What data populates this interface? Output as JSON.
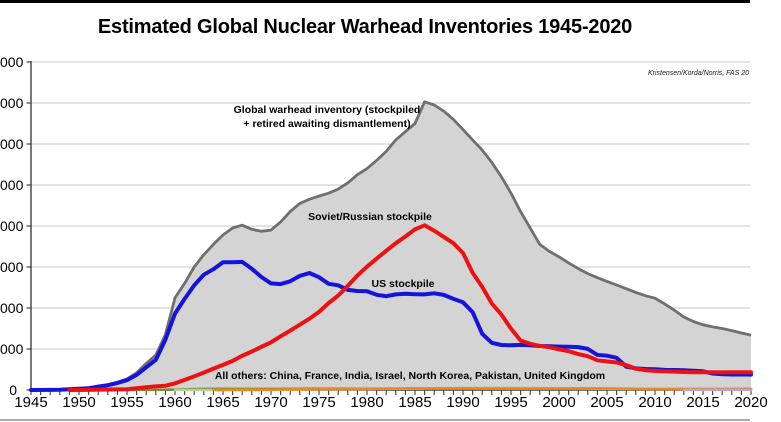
{
  "chart_data": {
    "type": "area",
    "title": "Estimated Global Nuclear Warhead Inventories 1945-2020",
    "attribution": "Kristensen/Korda/Norris, FAS 20",
    "annotations": {
      "global_line1": "Global warhead inventory (stockpiled",
      "global_line2": "+ retired awaiting dismantlement)",
      "soviet": "Soviet/Russian stockpile",
      "us": "US stockpile",
      "others": "All others: China, France, India, Israel, North Korea, Pakistan, United Kingdom"
    },
    "axes": {
      "x": {
        "min": 1945,
        "max": 2020,
        "label_step": 5,
        "minor_tick_step": 1,
        "tick_labels": [
          "1945",
          "1950",
          "1955",
          "1960",
          "1965",
          "1970",
          "1975",
          "1980",
          "1985",
          "1990",
          "1995",
          "2000",
          "2005",
          "2010",
          "2015",
          "2020"
        ]
      },
      "y": {
        "min": 0,
        "max": 80000,
        "tick_step": 10000,
        "grid": true,
        "labels_clipped_at_left": true,
        "visible_tick_labels": [
          "000",
          "000",
          "000",
          "000",
          "000",
          "000",
          "000",
          "000",
          "0"
        ]
      },
      "legend_position": "inline-annotations"
    },
    "series": [
      {
        "id": "global-inventory",
        "name": "Global warhead inventory (stockpiled + retired awaiting dismantlement)",
        "style": "area",
        "color": "#6f6f6f",
        "fill": "#d4d4d4",
        "width": 2.8,
        "points": [
          [
            1945,
            2
          ],
          [
            1947,
            15
          ],
          [
            1949,
            200
          ],
          [
            1950,
            300
          ],
          [
            1951,
            450
          ],
          [
            1952,
            900
          ],
          [
            1953,
            1300
          ],
          [
            1954,
            1900
          ],
          [
            1955,
            2700
          ],
          [
            1956,
            4200
          ],
          [
            1957,
            6500
          ],
          [
            1958,
            8500
          ],
          [
            1959,
            13500
          ],
          [
            1960,
            22500
          ],
          [
            1961,
            26000
          ],
          [
            1962,
            30000
          ],
          [
            1963,
            33000
          ],
          [
            1964,
            35500
          ],
          [
            1965,
            37800
          ],
          [
            1966,
            39500
          ],
          [
            1967,
            40200
          ],
          [
            1968,
            39200
          ],
          [
            1969,
            38700
          ],
          [
            1970,
            39000
          ],
          [
            1971,
            41000
          ],
          [
            1972,
            43500
          ],
          [
            1973,
            45500
          ],
          [
            1974,
            46500
          ],
          [
            1975,
            47300
          ],
          [
            1976,
            48000
          ],
          [
            1977,
            49000
          ],
          [
            1978,
            50500
          ],
          [
            1979,
            52500
          ],
          [
            1980,
            54000
          ],
          [
            1981,
            56000
          ],
          [
            1982,
            58200
          ],
          [
            1983,
            61000
          ],
          [
            1984,
            63000
          ],
          [
            1985,
            65000
          ],
          [
            1986,
            70300
          ],
          [
            1987,
            69500
          ],
          [
            1988,
            68000
          ],
          [
            1989,
            66000
          ],
          [
            1990,
            63500
          ],
          [
            1991,
            61000
          ],
          [
            1992,
            58500
          ],
          [
            1993,
            55500
          ],
          [
            1994,
            52000
          ],
          [
            1995,
            48000
          ],
          [
            1996,
            43500
          ],
          [
            1997,
            39500
          ],
          [
            1998,
            35500
          ],
          [
            1999,
            33800
          ],
          [
            2000,
            32500
          ],
          [
            2001,
            31000
          ],
          [
            2002,
            29600
          ],
          [
            2003,
            28400
          ],
          [
            2004,
            27400
          ],
          [
            2005,
            26500
          ],
          [
            2006,
            25600
          ],
          [
            2007,
            24700
          ],
          [
            2008,
            23800
          ],
          [
            2009,
            23000
          ],
          [
            2010,
            22400
          ],
          [
            2011,
            21000
          ],
          [
            2012,
            19500
          ],
          [
            2013,
            17800
          ],
          [
            2014,
            16700
          ],
          [
            2015,
            15900
          ],
          [
            2016,
            15400
          ],
          [
            2017,
            15000
          ],
          [
            2018,
            14500
          ],
          [
            2019,
            13900
          ],
          [
            2020,
            13400
          ]
        ]
      },
      {
        "id": "united-kingdom",
        "name": "United Kingdom (all others)",
        "style": "line",
        "color": "#7d8b33",
        "width": 2.5,
        "points": [
          [
            1953,
            1
          ],
          [
            1955,
            14
          ],
          [
            1958,
            30
          ],
          [
            1960,
            105
          ],
          [
            1963,
            270
          ],
          [
            1965,
            310
          ],
          [
            1970,
            280
          ],
          [
            1975,
            350
          ],
          [
            1980,
            350
          ],
          [
            1985,
            300
          ],
          [
            1990,
            300
          ],
          [
            1995,
            300
          ],
          [
            2000,
            280
          ],
          [
            2005,
            280
          ],
          [
            2010,
            225
          ],
          [
            2015,
            215
          ],
          [
            2020,
            195
          ]
        ]
      },
      {
        "id": "france",
        "name": "France (all others)",
        "style": "line",
        "color": "#b7cf9c",
        "width": 2.5,
        "points": [
          [
            1960,
            0
          ],
          [
            1964,
            4
          ],
          [
            1966,
            20
          ],
          [
            1968,
            36
          ],
          [
            1970,
            36
          ],
          [
            1975,
            188
          ],
          [
            1980,
            250
          ],
          [
            1985,
            360
          ],
          [
            1990,
            505
          ],
          [
            1995,
            500
          ],
          [
            2000,
            470
          ],
          [
            2005,
            350
          ],
          [
            2010,
            300
          ],
          [
            2015,
            300
          ],
          [
            2020,
            290
          ]
        ]
      },
      {
        "id": "china",
        "name": "China (all others)",
        "style": "line",
        "color": "#ee8822",
        "width": 2.5,
        "points": [
          [
            1964,
            1
          ],
          [
            1966,
            20
          ],
          [
            1968,
            35
          ],
          [
            1970,
            75
          ],
          [
            1972,
            130
          ],
          [
            1975,
            185
          ],
          [
            1980,
            280
          ],
          [
            1985,
            425
          ],
          [
            1990,
            430
          ],
          [
            1995,
            400
          ],
          [
            2000,
            400
          ],
          [
            2005,
            400
          ],
          [
            2010,
            240
          ],
          [
            2015,
            260
          ],
          [
            2020,
            320
          ]
        ]
      },
      {
        "id": "north-korea",
        "name": "North Korea (all others)",
        "style": "line",
        "color": "#b4a6d8",
        "width": 2.5,
        "points": [
          [
            2013,
            10
          ],
          [
            2015,
            15
          ],
          [
            2017,
            25
          ],
          [
            2020,
            35
          ]
        ]
      },
      {
        "id": "us-stockpile",
        "name": "US stockpile",
        "style": "line",
        "color": "#1414dd",
        "width": 4,
        "points": [
          [
            1945,
            2
          ],
          [
            1947,
            13
          ],
          [
            1948,
            50
          ],
          [
            1949,
            170
          ],
          [
            1950,
            299
          ],
          [
            1951,
            438
          ],
          [
            1952,
            841
          ],
          [
            1953,
            1169
          ],
          [
            1954,
            1703
          ],
          [
            1955,
            2422
          ],
          [
            1956,
            3692
          ],
          [
            1957,
            5543
          ],
          [
            1958,
            7345
          ],
          [
            1959,
            12298
          ],
          [
            1960,
            18638
          ],
          [
            1961,
            22229
          ],
          [
            1962,
            25540
          ],
          [
            1963,
            28133
          ],
          [
            1964,
            29463
          ],
          [
            1965,
            31139
          ],
          [
            1966,
            31175
          ],
          [
            1967,
            31255
          ],
          [
            1968,
            29561
          ],
          [
            1969,
            27552
          ],
          [
            1970,
            26008
          ],
          [
            1971,
            25830
          ],
          [
            1972,
            26516
          ],
          [
            1973,
            27835
          ],
          [
            1974,
            28537
          ],
          [
            1975,
            27519
          ],
          [
            1976,
            25914
          ],
          [
            1977,
            25542
          ],
          [
            1978,
            24418
          ],
          [
            1979,
            24138
          ],
          [
            1980,
            24104
          ],
          [
            1981,
            23208
          ],
          [
            1982,
            22886
          ],
          [
            1983,
            23305
          ],
          [
            1984,
            23459
          ],
          [
            1985,
            23368
          ],
          [
            1986,
            23317
          ],
          [
            1987,
            23575
          ],
          [
            1988,
            23205
          ],
          [
            1989,
            22217
          ],
          [
            1990,
            21392
          ],
          [
            1991,
            19008
          ],
          [
            1992,
            13708
          ],
          [
            1993,
            11511
          ],
          [
            1994,
            10979
          ],
          [
            1995,
            10904
          ],
          [
            1996,
            11011
          ],
          [
            1997,
            10903
          ],
          [
            1998,
            10732
          ],
          [
            1999,
            10685
          ],
          [
            2000,
            10577
          ],
          [
            2001,
            10526
          ],
          [
            2002,
            10457
          ],
          [
            2003,
            10027
          ],
          [
            2004,
            8570
          ],
          [
            2005,
            8360
          ],
          [
            2006,
            7853
          ],
          [
            2007,
            5709
          ],
          [
            2008,
            5273
          ],
          [
            2009,
            5113
          ],
          [
            2010,
            5066
          ],
          [
            2011,
            4897
          ],
          [
            2012,
            4881
          ],
          [
            2013,
            4804
          ],
          [
            2014,
            4717
          ],
          [
            2015,
            4571
          ],
          [
            2016,
            4018
          ],
          [
            2017,
            3822
          ],
          [
            2018,
            3785
          ],
          [
            2019,
            3805
          ],
          [
            2020,
            3750
          ]
        ]
      },
      {
        "id": "soviet-russian-stockpile",
        "name": "Soviet/Russian stockpile",
        "style": "line",
        "color": "#ee1111",
        "width": 4,
        "points": [
          [
            1949,
            1
          ],
          [
            1951,
            25
          ],
          [
            1953,
            120
          ],
          [
            1955,
            200
          ],
          [
            1956,
            426
          ],
          [
            1957,
            660
          ],
          [
            1958,
            869
          ],
          [
            1959,
            1060
          ],
          [
            1960,
            1605
          ],
          [
            1961,
            2471
          ],
          [
            1962,
            3322
          ],
          [
            1963,
            4238
          ],
          [
            1964,
            5221
          ],
          [
            1965,
            6129
          ],
          [
            1966,
            7089
          ],
          [
            1967,
            8339
          ],
          [
            1968,
            9399
          ],
          [
            1969,
            10538
          ],
          [
            1970,
            11643
          ],
          [
            1971,
            13092
          ],
          [
            1972,
            14478
          ],
          [
            1973,
            15915
          ],
          [
            1974,
            17385
          ],
          [
            1975,
            19055
          ],
          [
            1976,
            21205
          ],
          [
            1977,
            23044
          ],
          [
            1978,
            25393
          ],
          [
            1979,
            27935
          ],
          [
            1980,
            30062
          ],
          [
            1981,
            32049
          ],
          [
            1982,
            33952
          ],
          [
            1983,
            35804
          ],
          [
            1984,
            37431
          ],
          [
            1985,
            39197
          ],
          [
            1986,
            40159
          ],
          [
            1987,
            38859
          ],
          [
            1988,
            37333
          ],
          [
            1989,
            35805
          ],
          [
            1990,
            33417
          ],
          [
            1991,
            28595
          ],
          [
            1992,
            25155
          ],
          [
            1993,
            21101
          ],
          [
            1994,
            18399
          ],
          [
            1995,
            14978
          ],
          [
            1996,
            12085
          ],
          [
            1997,
            11264
          ],
          [
            1998,
            10764
          ],
          [
            1999,
            10451
          ],
          [
            2000,
            9896
          ],
          [
            2001,
            9477
          ],
          [
            2002,
            8757
          ],
          [
            2003,
            8243
          ],
          [
            2004,
            7252
          ],
          [
            2005,
            6966
          ],
          [
            2006,
            6718
          ],
          [
            2007,
            6079
          ],
          [
            2008,
            5189
          ],
          [
            2009,
            4836
          ],
          [
            2010,
            4653
          ],
          [
            2011,
            4541
          ],
          [
            2012,
            4480
          ],
          [
            2013,
            4380
          ],
          [
            2014,
            4350
          ],
          [
            2015,
            4350
          ],
          [
            2016,
            4350
          ],
          [
            2017,
            4300
          ],
          [
            2018,
            4350
          ],
          [
            2019,
            4330
          ],
          [
            2020,
            4315
          ]
        ]
      }
    ],
    "colors": {
      "grid": "#c9c9c9",
      "axis": "#3f3f3f",
      "area_fill": "#d4d4d4",
      "area_border": "#6f6f6f",
      "us": "#1414dd",
      "soviet": "#ee1111",
      "uk": "#7d8b33",
      "france": "#b7cf9c",
      "china": "#ee8822",
      "north_korea": "#b4a6d8"
    }
  }
}
